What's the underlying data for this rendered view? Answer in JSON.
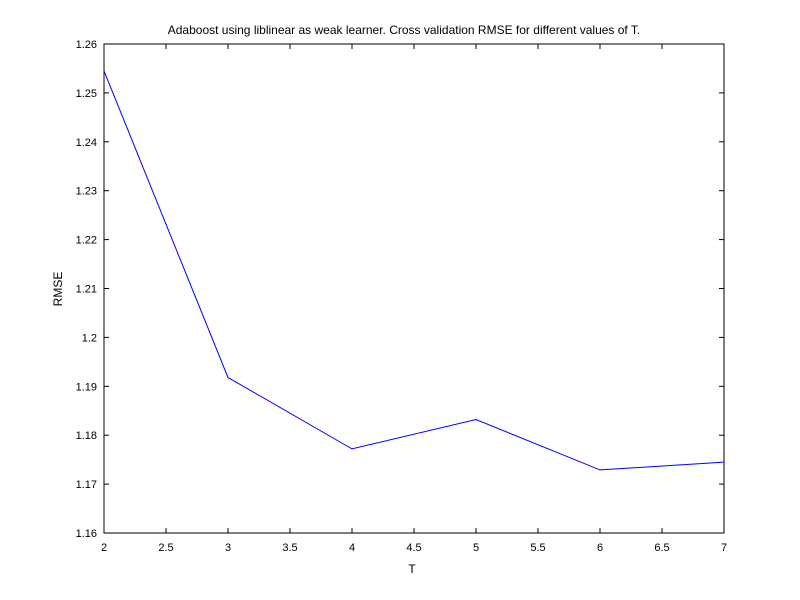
{
  "chart_data": {
    "type": "line",
    "title": "Adaboost using liblinear as weak learner. Cross validation RMSE for different values of T.",
    "xlabel": "T",
    "ylabel": "RMSE",
    "xlim": [
      2,
      7
    ],
    "ylim": [
      1.16,
      1.26
    ],
    "x_ticks": [
      "2",
      "2.5",
      "3",
      "3.5",
      "4",
      "4.5",
      "5",
      "5.5",
      "6",
      "6.5",
      "7"
    ],
    "y_ticks": [
      "1.16",
      "1.17",
      "1.18",
      "1.19",
      "1.2",
      "1.21",
      "1.22",
      "1.23",
      "1.24",
      "1.25",
      "1.26"
    ],
    "grid": false,
    "series": [
      {
        "color": "#0000ff",
        "x": [
          2,
          3,
          4,
          5,
          6,
          7
        ],
        "y": [
          1.2545,
          1.1918,
          1.1772,
          1.1832,
          1.1729,
          1.1745
        ]
      }
    ]
  }
}
